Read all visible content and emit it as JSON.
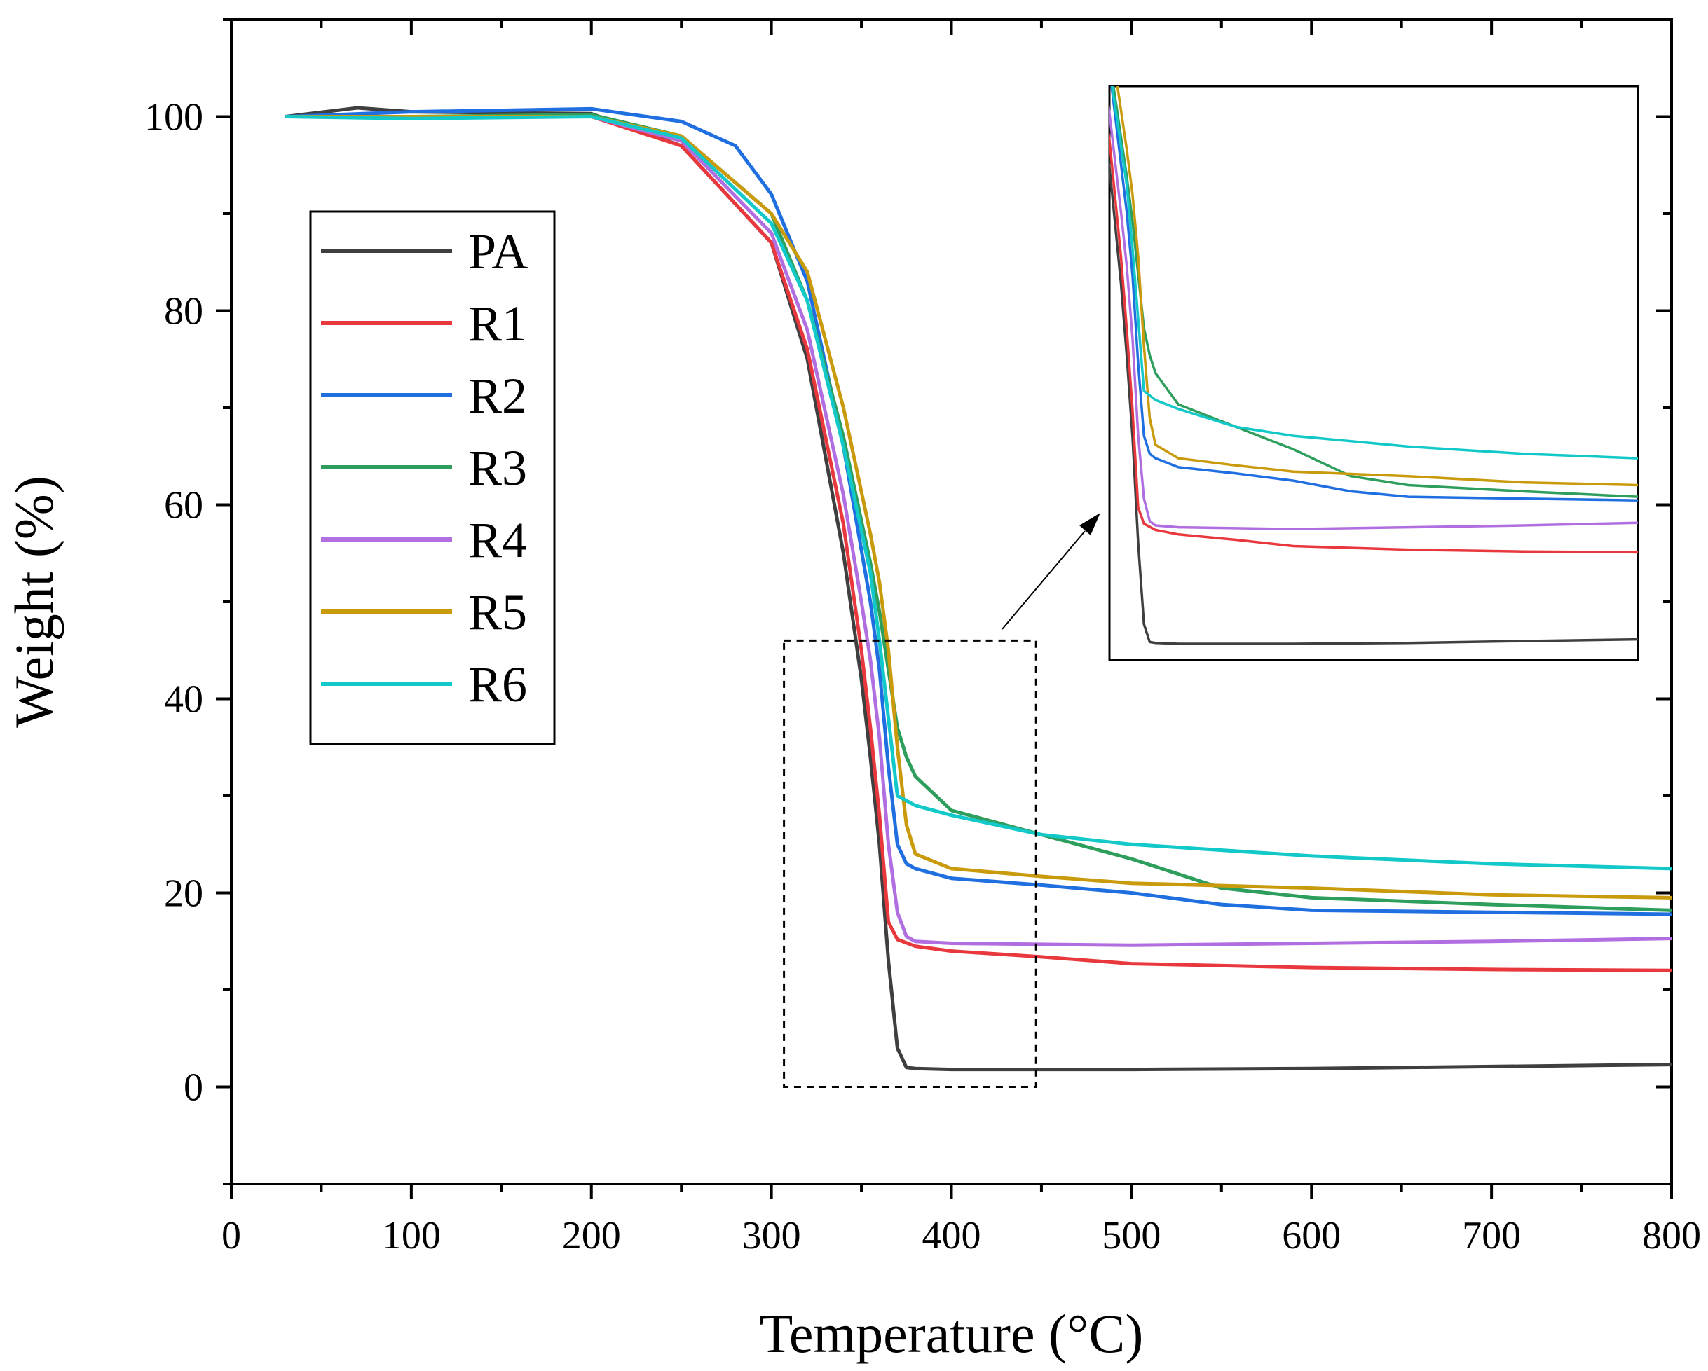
{
  "chart_data": {
    "type": "line",
    "title": "",
    "xlabel": "Temperature (°C)",
    "ylabel": "Weight (%)",
    "xlim": [
      0,
      800
    ],
    "ylim": [
      -10,
      110
    ],
    "x_ticks": [
      0,
      100,
      200,
      300,
      400,
      500,
      600,
      700,
      800
    ],
    "y_ticks": [
      0,
      20,
      40,
      60,
      80,
      100
    ],
    "grid": false,
    "legend_position": "upper-left",
    "series": [
      {
        "name": "PA",
        "color": "#3f3f3f",
        "x": [
          30,
          70,
          100,
          200,
          250,
          300,
          320,
          340,
          350,
          355,
          360,
          365,
          370,
          375,
          380,
          400,
          500,
          600,
          700,
          800
        ],
        "y": [
          100,
          100.9,
          100.5,
          100.3,
          97,
          87,
          75,
          55,
          42,
          34,
          25,
          13,
          4,
          2,
          1.9,
          1.8,
          1.8,
          1.9,
          2.1,
          2.3
        ]
      },
      {
        "name": "R1",
        "color": "#e8383d",
        "x": [
          30,
          100,
          200,
          250,
          300,
          320,
          340,
          350,
          355,
          360,
          365,
          370,
          380,
          400,
          450,
          500,
          600,
          700,
          800
        ],
        "y": [
          100,
          100,
          100,
          97,
          87,
          76,
          58,
          45,
          37,
          28,
          17,
          15.2,
          14.5,
          14,
          13.4,
          12.7,
          12.3,
          12.1,
          12
        ]
      },
      {
        "name": "R2",
        "color": "#1f6fe0",
        "x": [
          30,
          100,
          200,
          250,
          280,
          300,
          320,
          340,
          355,
          360,
          365,
          370,
          375,
          380,
          400,
          450,
          500,
          550,
          600,
          700,
          800
        ],
        "y": [
          100,
          100.5,
          100.8,
          99.5,
          97,
          92,
          83,
          66,
          50,
          43,
          33,
          25,
          23,
          22.5,
          21.5,
          20.8,
          20,
          18.8,
          18.2,
          18,
          17.8
        ]
      },
      {
        "name": "R3",
        "color": "#2e9e5c",
        "x": [
          30,
          100,
          200,
          250,
          300,
          320,
          340,
          355,
          360,
          365,
          370,
          375,
          380,
          400,
          450,
          500,
          550,
          600,
          700,
          800
        ],
        "y": [
          100,
          100,
          100.2,
          98,
          90,
          81,
          67,
          54,
          49,
          43,
          37,
          34,
          32,
          28.5,
          26,
          23.5,
          20.5,
          19.5,
          18.8,
          18.2
        ]
      },
      {
        "name": "R4",
        "color": "#b06ee0",
        "x": [
          30,
          100,
          200,
          250,
          300,
          320,
          340,
          350,
          355,
          360,
          365,
          370,
          375,
          380,
          400,
          500,
          600,
          700,
          800
        ],
        "y": [
          100,
          100,
          100,
          97.5,
          88,
          78,
          61,
          50,
          44,
          36,
          25,
          18,
          15.5,
          15,
          14.8,
          14.6,
          14.8,
          15,
          15.3
        ]
      },
      {
        "name": "R5",
        "color": "#c99a0c",
        "x": [
          30,
          100,
          200,
          250,
          300,
          320,
          340,
          355,
          360,
          365,
          370,
          375,
          380,
          400,
          450,
          500,
          600,
          700,
          800
        ],
        "y": [
          100,
          100,
          100,
          98,
          90,
          84,
          70,
          57,
          52,
          45,
          35,
          27,
          24,
          22.5,
          21.7,
          21,
          20.5,
          19.8,
          19.5
        ]
      },
      {
        "name": "R6",
        "color": "#12c8c8",
        "x": [
          30,
          100,
          200,
          250,
          300,
          320,
          340,
          355,
          360,
          365,
          370,
          375,
          380,
          400,
          450,
          500,
          600,
          700,
          800
        ],
        "y": [
          100,
          99.8,
          100,
          97.8,
          89,
          81,
          66,
          53,
          46,
          38,
          30,
          29.5,
          29,
          28,
          26,
          25,
          23.8,
          23,
          22.5
        ]
      }
    ],
    "inset": {
      "description_box_xlim": [
        307,
        447
      ],
      "description_box_ylim": [
        0,
        46
      ],
      "xlim": [
        340,
        800
      ],
      "ylim": [
        0,
        64
      ]
    }
  }
}
